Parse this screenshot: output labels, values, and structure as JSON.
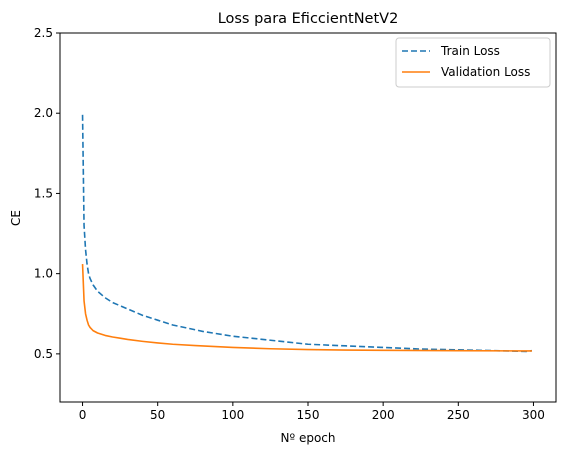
{
  "chart_data": {
    "type": "line",
    "title": "Loss para EficcientNetV2",
    "xlabel": "Nº epoch",
    "ylabel": "CE",
    "xlim": [
      -15,
      315
    ],
    "ylim": [
      0.2,
      2.5
    ],
    "x_ticks": [
      0,
      50,
      100,
      150,
      200,
      250,
      300
    ],
    "y_ticks": [
      0.5,
      1.0,
      1.5,
      2.0,
      2.5
    ],
    "x_tick_labels": [
      "0",
      "50",
      "100",
      "150",
      "200",
      "250",
      "300"
    ],
    "y_tick_labels": [
      "0.5",
      "1.0",
      "1.5",
      "2.0",
      "2.5"
    ],
    "grid": false,
    "legend_position": "top-right",
    "series": [
      {
        "name": "Train Loss",
        "color": "#1f77b4",
        "dash": "dashed",
        "x": [
          0,
          1,
          2,
          3,
          4,
          5,
          7,
          10,
          15,
          20,
          25,
          30,
          40,
          50,
          60,
          70,
          80,
          100,
          120,
          140,
          150,
          175,
          200,
          225,
          250,
          275,
          295,
          299
        ],
        "y": [
          1.99,
          1.3,
          1.15,
          1.06,
          1.0,
          0.97,
          0.93,
          0.89,
          0.85,
          0.82,
          0.8,
          0.78,
          0.74,
          0.71,
          0.68,
          0.66,
          0.64,
          0.61,
          0.59,
          0.57,
          0.56,
          0.55,
          0.54,
          0.53,
          0.525,
          0.52,
          0.515,
          0.52
        ]
      },
      {
        "name": "Validation Loss",
        "color": "#ff7f0e",
        "dash": "solid",
        "x": [
          0,
          1,
          2,
          3,
          4,
          5,
          7,
          10,
          15,
          20,
          25,
          30,
          40,
          50,
          60,
          75,
          100,
          125,
          150,
          175,
          200,
          250,
          299
        ],
        "y": [
          1.06,
          0.83,
          0.75,
          0.71,
          0.68,
          0.665,
          0.645,
          0.63,
          0.615,
          0.605,
          0.598,
          0.59,
          0.578,
          0.568,
          0.56,
          0.552,
          0.54,
          0.532,
          0.527,
          0.524,
          0.522,
          0.52,
          0.518
        ]
      }
    ]
  }
}
